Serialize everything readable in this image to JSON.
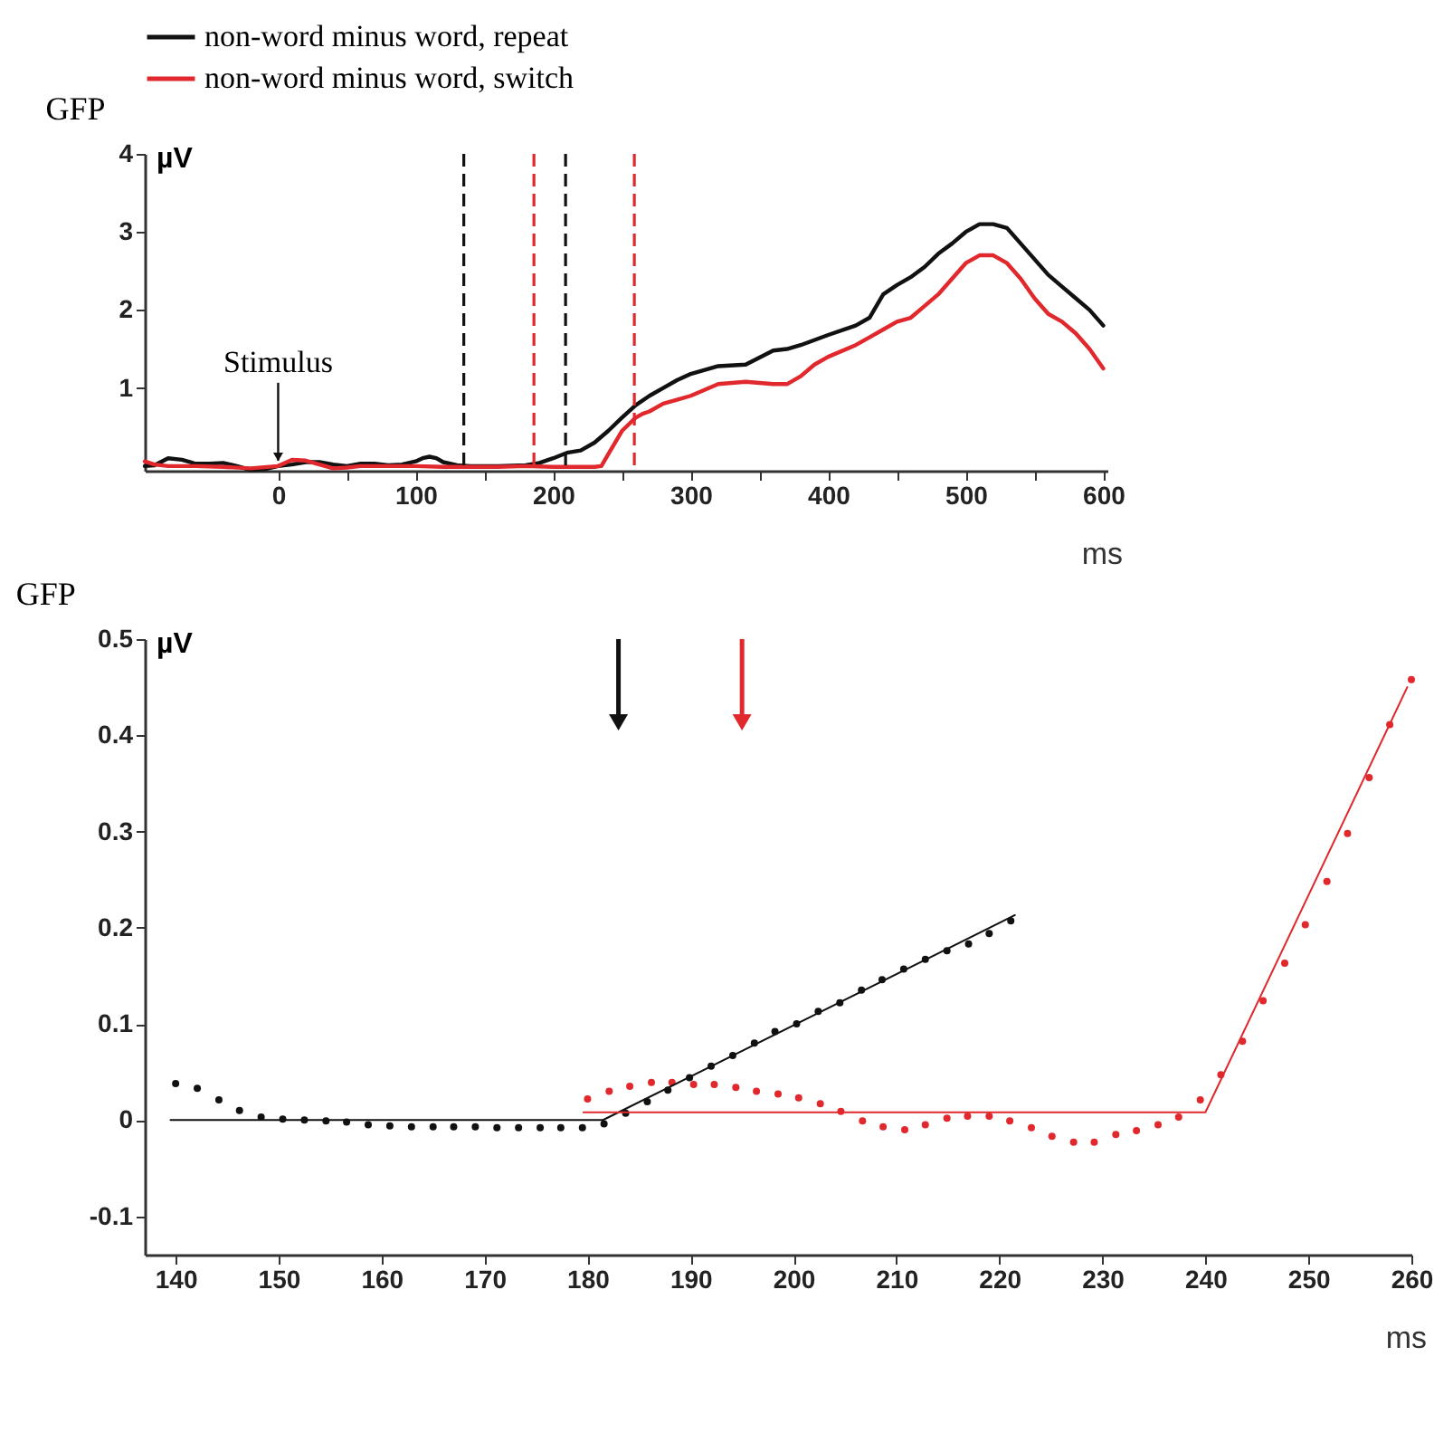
{
  "chart_data": [
    {
      "type": "line",
      "title": "GFP",
      "xlabel": "ms",
      "ylabel": "µV",
      "legend": "top",
      "xlim": [
        -97,
        603
      ],
      "ylim": [
        -0.06,
        4
      ],
      "xticks": [
        0,
        {
          "value": 50,
          "label": null
        },
        100,
        {
          "value": 150,
          "label": null
        },
        200,
        {
          "value": 250,
          "label": null
        },
        300,
        {
          "value": 350,
          "label": null
        },
        400,
        {
          "value": 450,
          "label": null
        },
        500,
        {
          "value": 550,
          "label": null
        },
        600
      ],
      "yticks": [
        1,
        2,
        3,
        4
      ],
      "ref_lines": [
        {
          "axis": "x",
          "value": 135,
          "color": "#111111",
          "line_style": "dashed"
        },
        {
          "axis": "x",
          "value": 186,
          "color": "#e0282d",
          "line_style": "dashed"
        },
        {
          "axis": "x",
          "value": 209,
          "color": "#111111",
          "line_style": "dashed"
        },
        {
          "axis": "x",
          "value": 259,
          "color": "#e0282d",
          "line_style": "dashed"
        }
      ],
      "annotations": [
        {
          "text": "Stimulus",
          "x": 0,
          "y": 0
        }
      ],
      "series": [
        {
          "name": "non-word minus word, repeat",
          "color": "#111111",
          "x": [
            -97,
            -90,
            -80,
            -70,
            -60,
            -50,
            -40,
            -30,
            -20,
            -10,
            0,
            10,
            20,
            30,
            40,
            50,
            60,
            70,
            80,
            90,
            100,
            105,
            110,
            115,
            120,
            130,
            140,
            160,
            180,
            190,
            200,
            210,
            220,
            230,
            240,
            250,
            260,
            270,
            280,
            290,
            300,
            320,
            340,
            360,
            370,
            380,
            400,
            420,
            430,
            440,
            450,
            460,
            470,
            480,
            490,
            500,
            510,
            520,
            530,
            540,
            550,
            560,
            570,
            580,
            590,
            600
          ],
          "values": [
            0.0,
            0.01,
            0.1,
            0.08,
            0.03,
            0.03,
            0.04,
            0.0,
            -0.05,
            -0.04,
            0.0,
            0.02,
            0.05,
            0.05,
            0.02,
            0.0,
            0.03,
            0.03,
            0.01,
            0.02,
            0.06,
            0.1,
            0.12,
            0.1,
            0.05,
            0.01,
            0.0,
            0.0,
            0.01,
            0.04,
            0.1,
            0.17,
            0.2,
            0.3,
            0.45,
            0.62,
            0.78,
            0.9,
            1.0,
            1.1,
            1.18,
            1.28,
            1.3,
            1.48,
            1.5,
            1.55,
            1.68,
            1.8,
            1.9,
            2.2,
            2.32,
            2.42,
            2.55,
            2.72,
            2.85,
            3.0,
            3.1,
            3.1,
            3.05,
            2.85,
            2.65,
            2.45,
            2.3,
            2.15,
            2.0,
            1.8
          ]
        },
        {
          "name": "non-word minus word, switch",
          "color": "#e0282d",
          "x": [
            -97,
            -90,
            -80,
            -60,
            -40,
            -20,
            0,
            10,
            20,
            30,
            40,
            50,
            60,
            80,
            100,
            120,
            140,
            160,
            180,
            200,
            220,
            230,
            235,
            240,
            250,
            260,
            265,
            270,
            280,
            290,
            300,
            320,
            340,
            360,
            370,
            380,
            390,
            400,
            420,
            430,
            440,
            450,
            460,
            470,
            480,
            490,
            500,
            510,
            520,
            530,
            540,
            550,
            560,
            570,
            580,
            590,
            600
          ],
          "values": [
            0.06,
            0.02,
            0.0,
            0.0,
            -0.01,
            -0.03,
            0.0,
            0.08,
            0.07,
            0.02,
            -0.03,
            -0.02,
            0.0,
            0.0,
            0.0,
            -0.01,
            -0.01,
            -0.01,
            0.0,
            -0.01,
            -0.01,
            -0.01,
            0.0,
            0.15,
            0.45,
            0.62,
            0.67,
            0.7,
            0.8,
            0.85,
            0.9,
            1.05,
            1.08,
            1.05,
            1.05,
            1.15,
            1.3,
            1.4,
            1.55,
            1.65,
            1.75,
            1.85,
            1.9,
            2.05,
            2.2,
            2.4,
            2.6,
            2.7,
            2.7,
            2.6,
            2.4,
            2.15,
            1.95,
            1.85,
            1.7,
            1.5,
            1.25
          ]
        }
      ]
    },
    {
      "type": "scatter",
      "title": "GFP",
      "xlabel": "ms",
      "ylabel": "µV",
      "xlim": [
        137,
        260
      ],
      "ylim": [
        -0.14,
        0.5
      ],
      "xticks": [
        140,
        150,
        160,
        170,
        180,
        190,
        200,
        210,
        220,
        230,
        240,
        250,
        260
      ],
      "yticks": [
        -0.1,
        0,
        0.1,
        0.2,
        0.3,
        0.4,
        0.5
      ],
      "ref_lines": [
        {
          "axis": "x",
          "value": 183,
          "color": "#111111"
        },
        {
          "axis": "x",
          "value": 195,
          "color": "#e0282d"
        }
      ],
      "series": [
        {
          "color": "#111111",
          "marker": "circle",
          "x": [
            140,
            142.1,
            144.2,
            146.2,
            148.3,
            150.4,
            152.5,
            154.6,
            156.6,
            158.7,
            160.8,
            162.9,
            165,
            167,
            169.1,
            171.2,
            173.3,
            175.4,
            177.4,
            179.5,
            181.6,
            183.7,
            185.8,
            187.8,
            189.9,
            192,
            194.1,
            196.2,
            198.2,
            200.3,
            202.4,
            204.5,
            206.6,
            208.6,
            210.7,
            212.8,
            214.9,
            217,
            219,
            221.1
          ],
          "values": [
            0.038,
            0.033,
            0.021,
            0.01,
            0.003,
            0.001,
            0.0,
            -0.001,
            -0.002,
            -0.005,
            -0.006,
            -0.007,
            -0.007,
            -0.007,
            -0.007,
            -0.008,
            -0.008,
            -0.008,
            -0.008,
            -0.008,
            -0.004,
            0.007,
            0.019,
            0.031,
            0.044,
            0.056,
            0.067,
            0.08,
            0.092,
            0.1,
            0.113,
            0.122,
            0.135,
            0.146,
            0.157,
            0.167,
            0.176,
            0.183,
            0.194,
            0.207
          ]
        },
        {
          "color": "#e0282d",
          "marker": "circle",
          "x": [
            180,
            182.1,
            184.1,
            186.2,
            188.2,
            190.3,
            192.3,
            194.4,
            196.4,
            198.5,
            200.5,
            202.6,
            204.6,
            206.7,
            208.7,
            210.8,
            212.8,
            214.9,
            216.9,
            219,
            221,
            223.1,
            225.1,
            227.2,
            229.2,
            231.3,
            233.3,
            235.4,
            237.4,
            239.5,
            241.5,
            243.6,
            245.6,
            247.7,
            249.7,
            251.8,
            253.8,
            255.9,
            257.9,
            260
          ],
          "values": [
            0.022,
            0.03,
            0.035,
            0.039,
            0.039,
            0.037,
            0.037,
            0.034,
            0.03,
            0.027,
            0.023,
            0.017,
            0.009,
            -0.001,
            -0.007,
            -0.01,
            -0.005,
            0.002,
            0.004,
            0.004,
            -0.001,
            -0.008,
            -0.017,
            -0.023,
            -0.023,
            -0.015,
            -0.011,
            -0.005,
            0.003,
            0.021,
            0.047,
            0.082,
            0.124,
            0.163,
            0.203,
            0.248,
            0.298,
            0.356,
            0.411,
            0.458
          ]
        },
        {
          "type": "line",
          "color": "#111111",
          "x": [
            139.5,
            181.5,
            221.5
          ],
          "values": [
            0,
            0,
            0.213
          ]
        },
        {
          "type": "line",
          "color": "#e0282d",
          "x": [
            179.6,
            240,
            259.6
          ],
          "values": [
            0.008,
            0.008,
            0.45
          ]
        }
      ]
    }
  ]
}
